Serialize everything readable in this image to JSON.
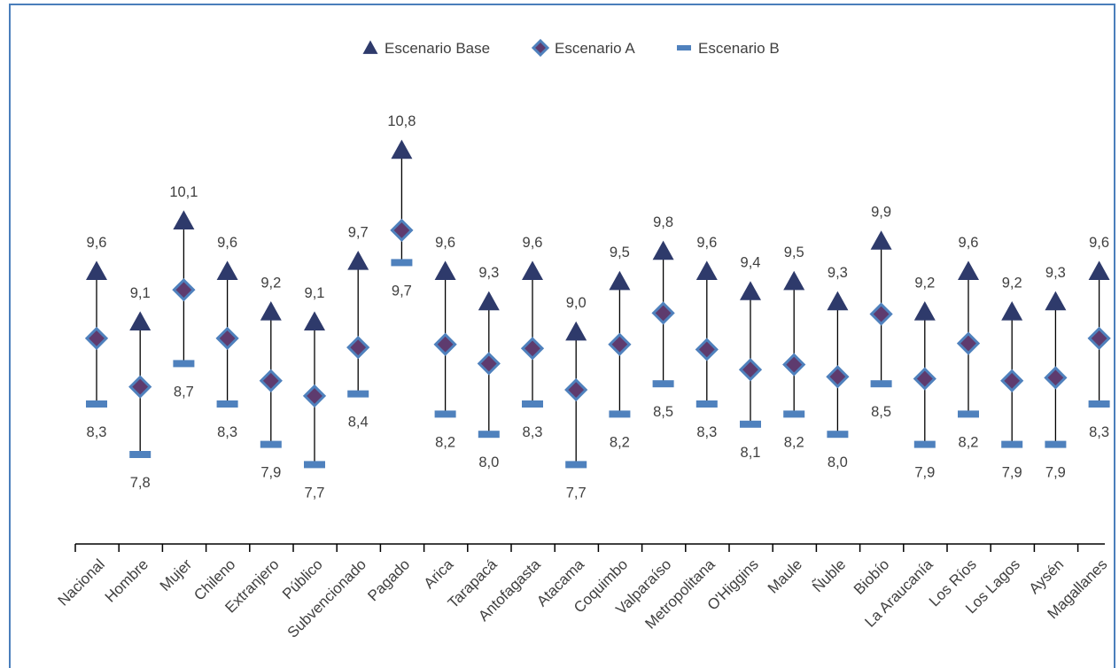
{
  "chart_data": {
    "type": "scatter",
    "categories": [
      "Nacional",
      "Hombre",
      "Mujer",
      "Chileno",
      "Extranjero",
      "Público",
      "Subvencionado",
      "Pagado",
      "Arica",
      "Tarapacá",
      "Antofagasta",
      "Atacama",
      "Coquimbo",
      "Valparaíso",
      "Metropolitana",
      "O'Higgins",
      "Maule",
      "Ñuble",
      "Biobío",
      "La Araucanía",
      "Los Ríos",
      "Los Lagos",
      "Aysén",
      "Magallanes"
    ],
    "series": [
      {
        "name": "Escenario Base",
        "marker": "triangle",
        "color": "#2e3a6b",
        "values": [
          9.6,
          9.1,
          10.1,
          9.6,
          9.2,
          9.1,
          9.7,
          10.8,
          9.6,
          9.3,
          9.6,
          9.0,
          9.5,
          9.8,
          9.6,
          9.4,
          9.5,
          9.3,
          9.9,
          9.2,
          9.6,
          9.2,
          9.3,
          9.6
        ],
        "labels": [
          "9,6",
          "9,1",
          "10,1",
          "9,6",
          "9,2",
          "9,1",
          "9,7",
          "10,8",
          "9,6",
          "9,3",
          "9,6",
          "9,0",
          "9,5",
          "9,8",
          "9,6",
          "9,4",
          "9,5",
          "9,3",
          "9,9",
          "9,2",
          "9,6",
          "9,2",
          "9,3",
          "9,6"
        ]
      },
      {
        "name": "Escenario A",
        "marker": "diamond",
        "color": "#4f81bd",
        "values": [
          8.95,
          8.47,
          9.43,
          8.95,
          8.53,
          8.38,
          8.86,
          10.02,
          8.89,
          8.7,
          8.85,
          8.44,
          8.89,
          9.2,
          8.84,
          8.64,
          8.69,
          8.57,
          9.19,
          8.55,
          8.9,
          8.53,
          8.56,
          8.95
        ]
      },
      {
        "name": "Escenario B",
        "marker": "dash",
        "color": "#4f81bd",
        "values": [
          8.3,
          7.8,
          8.7,
          8.3,
          7.9,
          7.7,
          8.4,
          9.7,
          8.2,
          8.0,
          8.3,
          7.7,
          8.2,
          8.5,
          8.3,
          8.1,
          8.2,
          8.0,
          8.5,
          7.9,
          8.2,
          7.9,
          7.9,
          8.3
        ],
        "labels": [
          "8,3",
          "7,8",
          "8,7",
          "8,3",
          "7,9",
          "7,7",
          "8,4",
          "9,7",
          "8,2",
          "8,0",
          "8,3",
          "7,7",
          "8,2",
          "8,5",
          "8,3",
          "8,1",
          "8,2",
          "8,0",
          "8,5",
          "7,9",
          "8,2",
          "7,9",
          "7,9",
          "8,3"
        ]
      }
    ],
    "legend_position": "top-center",
    "grid": false
  }
}
